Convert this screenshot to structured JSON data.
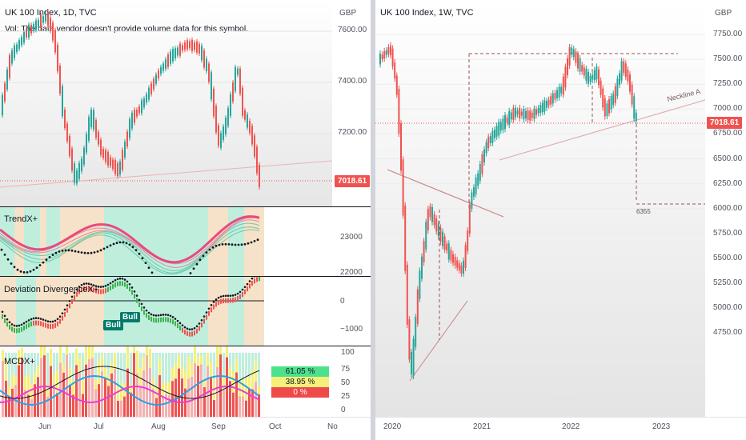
{
  "left_chart": {
    "title": "UK 100 Index, 1D, TVC",
    "volume_note": "Vol: The data vendor doesn't provide volume data for this symbol.",
    "currency": "GBP",
    "price_ticks": [
      "7600.00",
      "7400.00",
      "7200.00"
    ],
    "current_price": "7018.61",
    "x_ticks": [
      "Jun",
      "Jul",
      "Aug",
      "Sep",
      "Oct",
      "No"
    ],
    "trendx": {
      "title": "TrendX+",
      "ticks": [
        "23000",
        "22000"
      ]
    },
    "deviation": {
      "title": "Deviation DivergenceX+",
      "ticks": [
        "0",
        "−1000"
      ],
      "bull_labels": [
        "Bull",
        "Bull"
      ]
    },
    "mcdx": {
      "title": "MCDX+",
      "ticks": [
        "100",
        "75",
        "50",
        "25",
        "0"
      ],
      "pct_green": "61.05 %",
      "pct_yellow": "38.95 %",
      "pct_red": "0 %"
    }
  },
  "right_chart": {
    "title": "UK 100 Index, 1W, TVC",
    "currency": "GBP",
    "price_ticks": [
      "7750.00",
      "7500.00",
      "7250.00",
      "7000.00",
      "6750.00",
      "6500.00",
      "6250.00",
      "6000.00",
      "5750.00",
      "5500.00",
      "5250.00",
      "5000.00",
      "4750.00"
    ],
    "current_price": "7018.61",
    "x_ticks": [
      "2020",
      "2021",
      "2022",
      "2023"
    ],
    "neckline_label": "Neckline A",
    "target_label": "6355"
  },
  "colors": {
    "up": "#26a69a",
    "down": "#ef5350",
    "price_tag": "#ef5350",
    "bull": "#00796b"
  }
}
